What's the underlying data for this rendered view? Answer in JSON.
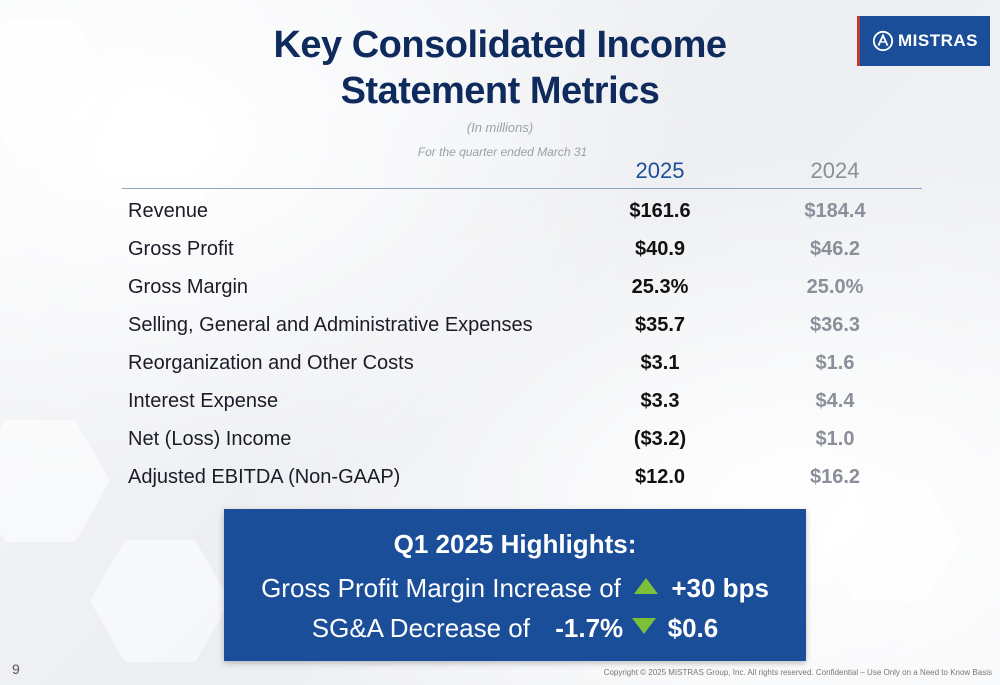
{
  "title_line1": "Key Consolidated Income",
  "title_line2": "Statement Metrics",
  "subtitle_units": "(In millions)",
  "subtitle_period": "For the quarter ended March 31",
  "logo": {
    "text": "MISTRAS",
    "color": "#1b4e98",
    "icon": "mistras-globe-icon"
  },
  "columns": [
    "2025",
    "2024"
  ],
  "rows": [
    {
      "label": "Revenue",
      "v2025": "$161.6",
      "v2024": "$184.4"
    },
    {
      "label": "Gross Profit",
      "v2025": "$40.9",
      "v2024": "$46.2"
    },
    {
      "label": "Gross Margin",
      "v2025": "25.3%",
      "v2024": "25.0%"
    },
    {
      "label": "Selling, General and Administrative Expenses",
      "v2025": "$35.7",
      "v2024": "$36.3"
    },
    {
      "label": "Reorganization and Other Costs",
      "v2025": "$3.1",
      "v2024": "$1.6"
    },
    {
      "label": "Interest Expense",
      "v2025": "$3.3",
      "v2024": "$4.4"
    },
    {
      "label": "Net (Loss) Income",
      "v2025": "($3.2)",
      "v2024": "$1.0"
    },
    {
      "label": "Adjusted EBITDA (Non-GAAP)",
      "v2025": "$12.0",
      "v2024": "$16.2"
    }
  ],
  "highlights": {
    "title": "Q1 2025 Highlights:",
    "line1_text": "Gross Profit Margin Increase of",
    "line1_value": "+30 bps",
    "line2_text": "SG&A Decrease of",
    "line2_pct": "-1.7%",
    "line2_value": "$0.6",
    "box_color": "#1b4e98",
    "arrow_color": "#7cbf3a"
  },
  "page_number": "9",
  "copyright": "Copyright © 2025 MISTRAS Group, Inc. All rights reserved. Confidential – Use Only on a Need to Know Basis"
}
